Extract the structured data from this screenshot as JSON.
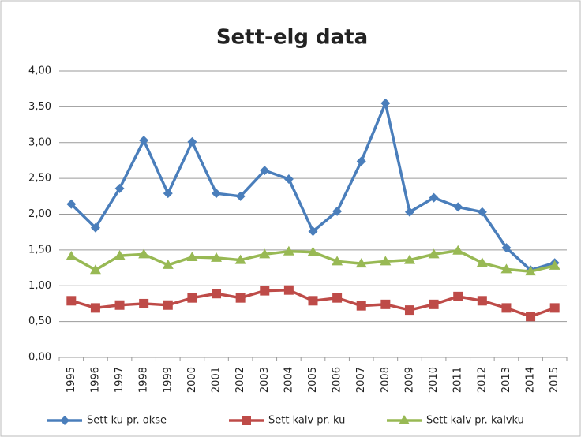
{
  "chart_data": {
    "type": "line",
    "title": "Sett-elg data",
    "categories": [
      "1995",
      "1996",
      "1997",
      "1998",
      "1999",
      "2000",
      "2001",
      "2002",
      "2003",
      "2004",
      "2005",
      "2006",
      "2007",
      "2008",
      "2009",
      "2010",
      "2011",
      "2012",
      "2013",
      "2014",
      "2015"
    ],
    "series": [
      {
        "name": "Sett ku pr. okse",
        "color": "#4a7ebb",
        "marker": "diamond",
        "values": [
          2.14,
          1.81,
          2.36,
          3.03,
          2.29,
          3.01,
          2.29,
          2.25,
          2.61,
          2.49,
          1.76,
          2.04,
          2.74,
          3.55,
          2.03,
          2.23,
          2.1,
          2.03,
          1.53,
          1.22,
          1.32
        ]
      },
      {
        "name": "Sett kalv pr. ku",
        "color": "#be4b48",
        "marker": "square",
        "values": [
          0.79,
          0.69,
          0.73,
          0.75,
          0.73,
          0.83,
          0.89,
          0.83,
          0.93,
          0.94,
          0.79,
          0.83,
          0.72,
          0.74,
          0.66,
          0.74,
          0.85,
          0.79,
          0.69,
          0.57,
          0.69
        ]
      },
      {
        "name": "Sett kalv pr. kalvku",
        "color": "#98b954",
        "marker": "triangle",
        "values": [
          1.41,
          1.22,
          1.42,
          1.44,
          1.29,
          1.4,
          1.39,
          1.36,
          1.44,
          1.48,
          1.47,
          1.34,
          1.31,
          1.34,
          1.36,
          1.44,
          1.49,
          1.32,
          1.23,
          1.2,
          1.28
        ]
      }
    ],
    "ylim": [
      0,
      4
    ],
    "yticks": [
      {
        "value": 0,
        "label": "0,00"
      },
      {
        "value": 0.5,
        "label": "0,50"
      },
      {
        "value": 1,
        "label": "1,00"
      },
      {
        "value": 1.5,
        "label": "1,50"
      },
      {
        "value": 2,
        "label": "2,00"
      },
      {
        "value": 2.5,
        "label": "2,50"
      },
      {
        "value": 3,
        "label": "3,00"
      },
      {
        "value": 3.5,
        "label": "3,50"
      },
      {
        "value": 4,
        "label": "4,00"
      }
    ],
    "grid": true,
    "legend": "bottom"
  }
}
